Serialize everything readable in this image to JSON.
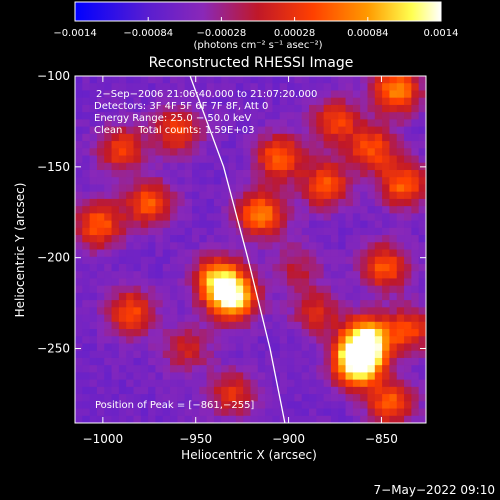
{
  "chart_data": {
    "type": "heatmap",
    "title": "Reconstructed RHESSI Image",
    "xlabel": "Heliocentric X (arcsec)",
    "ylabel": "Heliocentric Y (arcsec)",
    "x_ticks": [
      "−1000",
      "−950",
      "−900",
      "−850"
    ],
    "x_tick_values": [
      -1000,
      -950,
      -900,
      -850
    ],
    "y_ticks": [
      "−100",
      "−150",
      "−200",
      "−250"
    ],
    "y_tick_values": [
      -100,
      -150,
      -200,
      -250
    ],
    "xlim": [
      -1015,
      -826
    ],
    "ylim": [
      -291,
      -100
    ],
    "colorbar": {
      "ticks": [
        "−0.0014",
        "−0.00084",
        "−0.00028",
        "0.00028",
        "0.00084",
        "0.0014"
      ],
      "range": [
        -0.0014,
        0.0014
      ],
      "unit_label": "(photons cm⁻² s⁻¹ asec⁻²)",
      "colors": [
        "#0000ff",
        "#6a20d0",
        "#9b2ab0",
        "#d01818",
        "#ff5000",
        "#ffa000",
        "#ffff60",
        "#ffffff"
      ]
    },
    "annotations": [
      "2−Sep−2006 21:06:40.000 to 21:07:20.000",
      "Detectors: 3F 4F 5F 6F 7F 8F, Att 0",
      "Energy Range: 25.0 − 50.0 keV",
      "Clean     Total counts: 1.59E+03"
    ],
    "peak_label": "Position of Peak = [−861,−255]",
    "peak": [
      -861,
      -255
    ],
    "limb_curve": [
      [
        -953,
        -100
      ],
      [
        -935,
        -150
      ],
      [
        -922,
        -200
      ],
      [
        -910,
        -250
      ],
      [
        -902,
        -291
      ]
    ],
    "hotspots": [
      {
        "x": -863,
        "y": -258,
        "v": 1.0
      },
      {
        "x": -858,
        "y": -245,
        "v": 0.85
      },
      {
        "x": -842,
        "y": -108,
        "v": 0.7
      },
      {
        "x": -838,
        "y": -160,
        "v": 0.62
      },
      {
        "x": -848,
        "y": -205,
        "v": 0.6
      },
      {
        "x": -835,
        "y": -240,
        "v": 0.55
      },
      {
        "x": -845,
        "y": -280,
        "v": 0.6
      },
      {
        "x": -930,
        "y": -222,
        "v": 0.85
      },
      {
        "x": -938,
        "y": -212,
        "v": 0.7
      },
      {
        "x": -915,
        "y": -176,
        "v": 0.68
      },
      {
        "x": -905,
        "y": -145,
        "v": 0.62
      },
      {
        "x": -880,
        "y": -160,
        "v": 0.6
      },
      {
        "x": -990,
        "y": -140,
        "v": 0.55
      },
      {
        "x": -975,
        "y": -170,
        "v": 0.6
      },
      {
        "x": -960,
        "y": -130,
        "v": 0.55
      },
      {
        "x": -1002,
        "y": -182,
        "v": 0.62
      },
      {
        "x": -985,
        "y": -230,
        "v": 0.58
      },
      {
        "x": -930,
        "y": -275,
        "v": 0.5
      },
      {
        "x": -955,
        "y": -250,
        "v": 0.45
      },
      {
        "x": -885,
        "y": -230,
        "v": 0.48
      },
      {
        "x": -895,
        "y": -205,
        "v": 0.4
      },
      {
        "x": -875,
        "y": -125,
        "v": 0.55
      },
      {
        "x": -855,
        "y": -140,
        "v": 0.58
      }
    ],
    "grid": false
  },
  "footer": {
    "date": "7−May−2022 09:10"
  }
}
